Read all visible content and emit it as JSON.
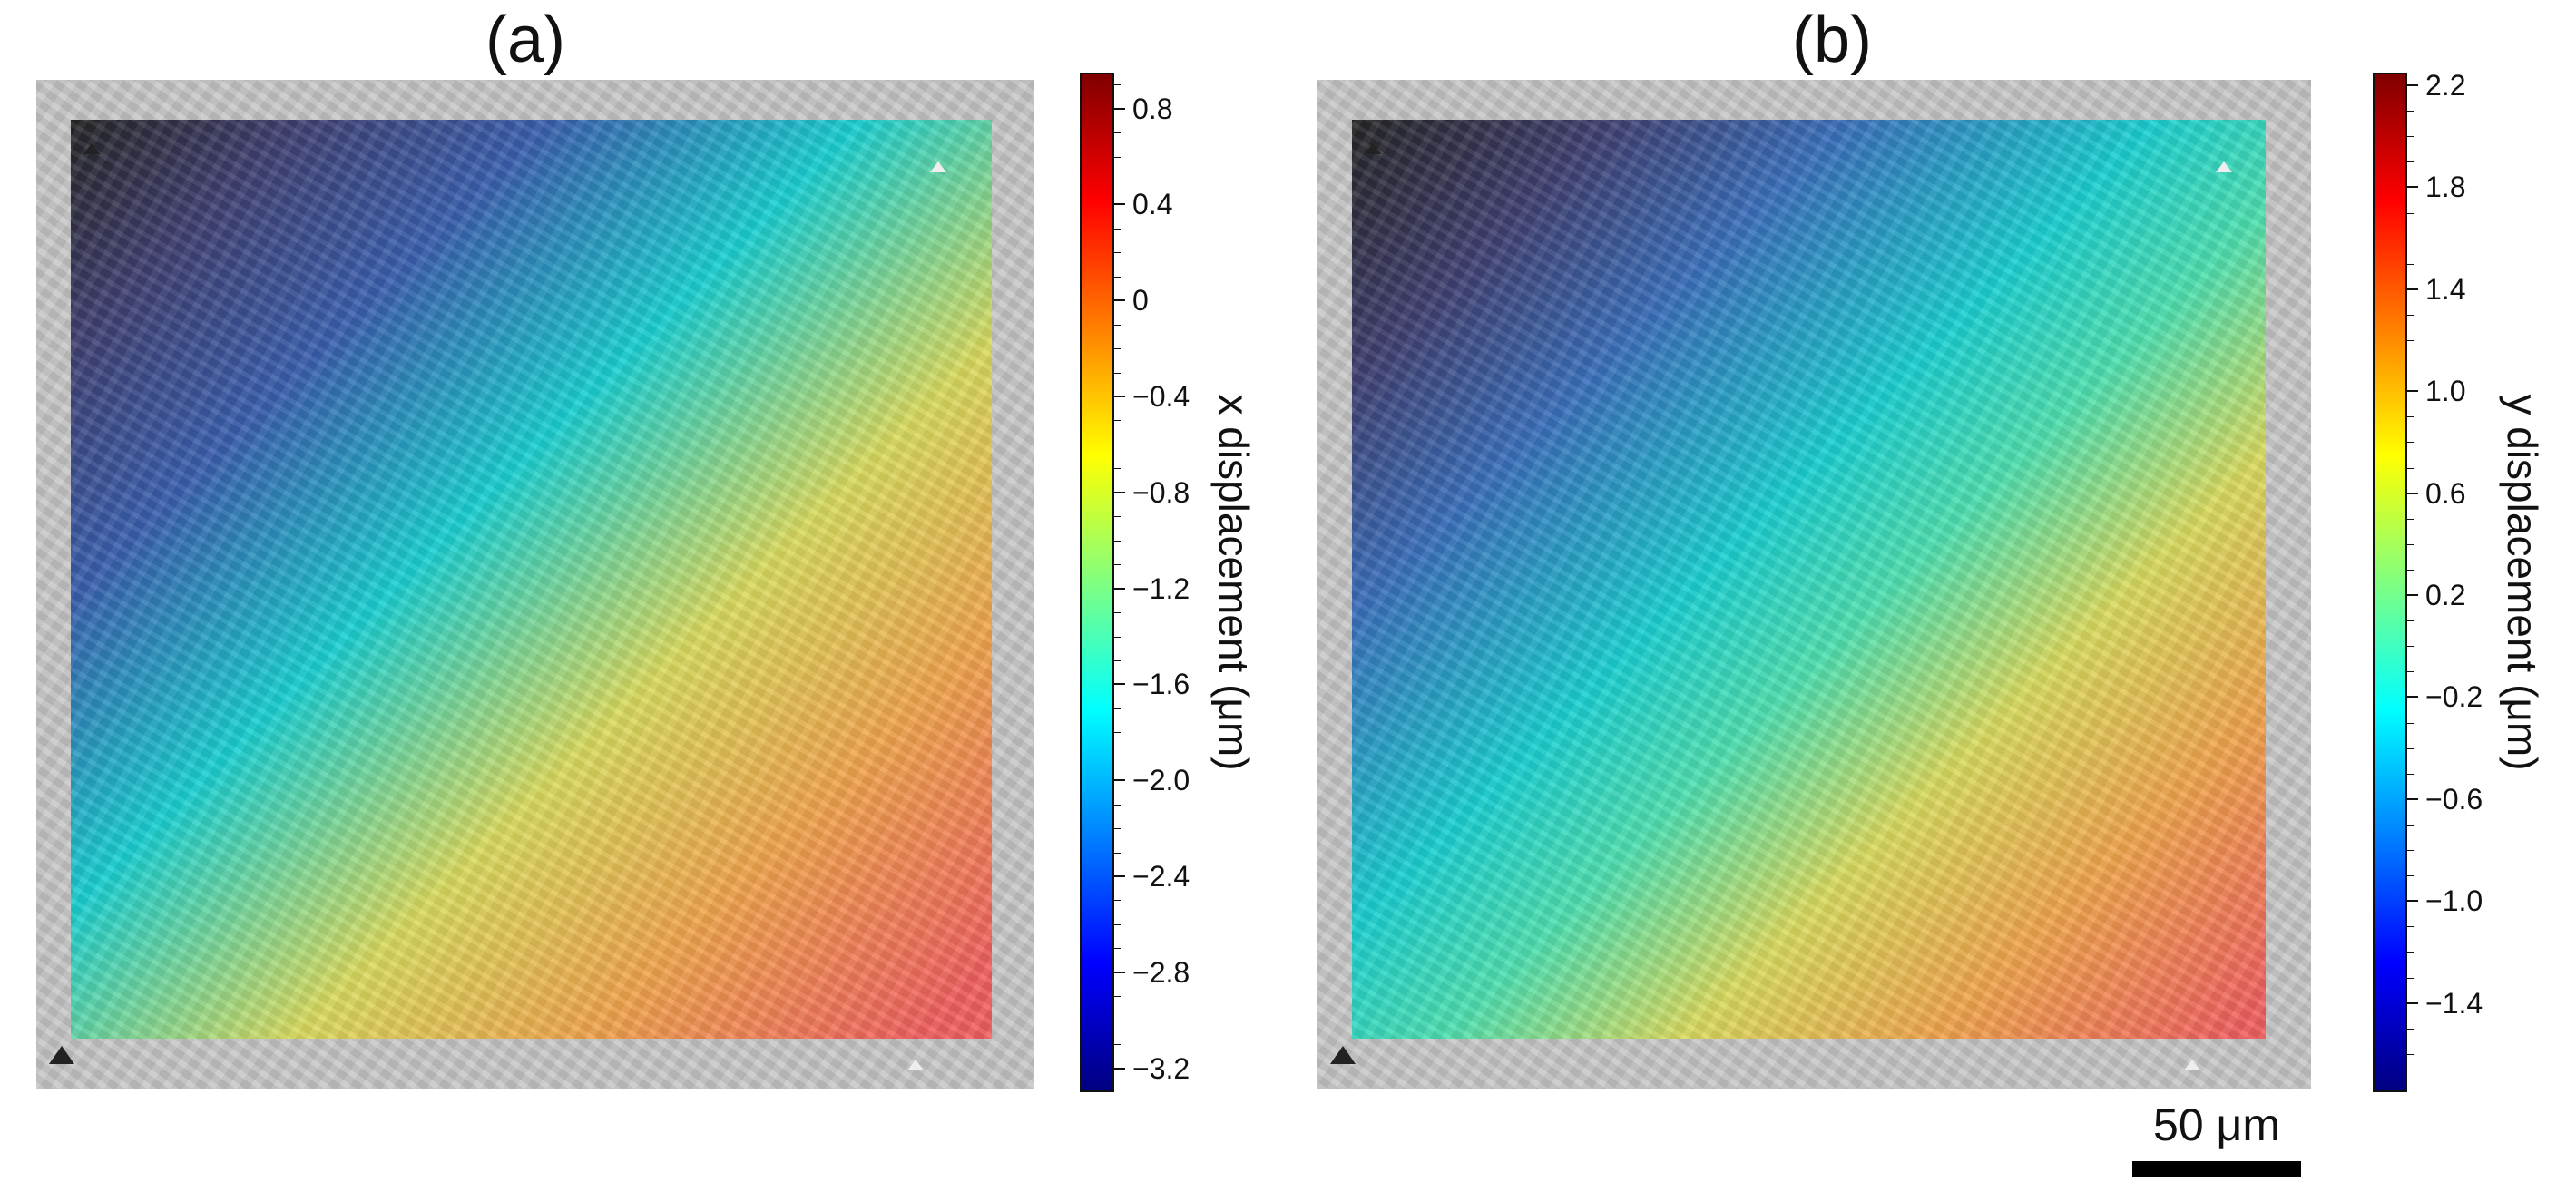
{
  "panels": [
    {
      "label": "(a)",
      "colorbar": {
        "title": "x displacement (μm)",
        "ticks": [
          "0.8",
          "0.4",
          "0",
          "−0.4",
          "−0.8",
          "−1.2",
          "−1.6",
          "−2.0",
          "−2.4",
          "−2.8",
          "−3.2"
        ],
        "range": [
          -3.3,
          0.95
        ],
        "colormap": "jet"
      }
    },
    {
      "label": "(b)",
      "colorbar": {
        "title": "y displacement (μm)",
        "ticks": [
          "2.2",
          "1.8",
          "1.4",
          "1.0",
          "0.6",
          "0.2",
          "−0.2",
          "−0.6",
          "−1.0",
          "−1.4"
        ],
        "range": [
          -1.75,
          2.25
        ],
        "colormap": "jet"
      }
    }
  ],
  "scale_bar": {
    "label": "50 μm"
  },
  "colors": {
    "jet": [
      "#000080",
      "#0000ff",
      "#0080ff",
      "#00ffff",
      "#80ff80",
      "#ffff00",
      "#ff8000",
      "#ff0000",
      "#800000"
    ],
    "frame_gray": "#c4c4c4",
    "text": "#111111"
  }
}
